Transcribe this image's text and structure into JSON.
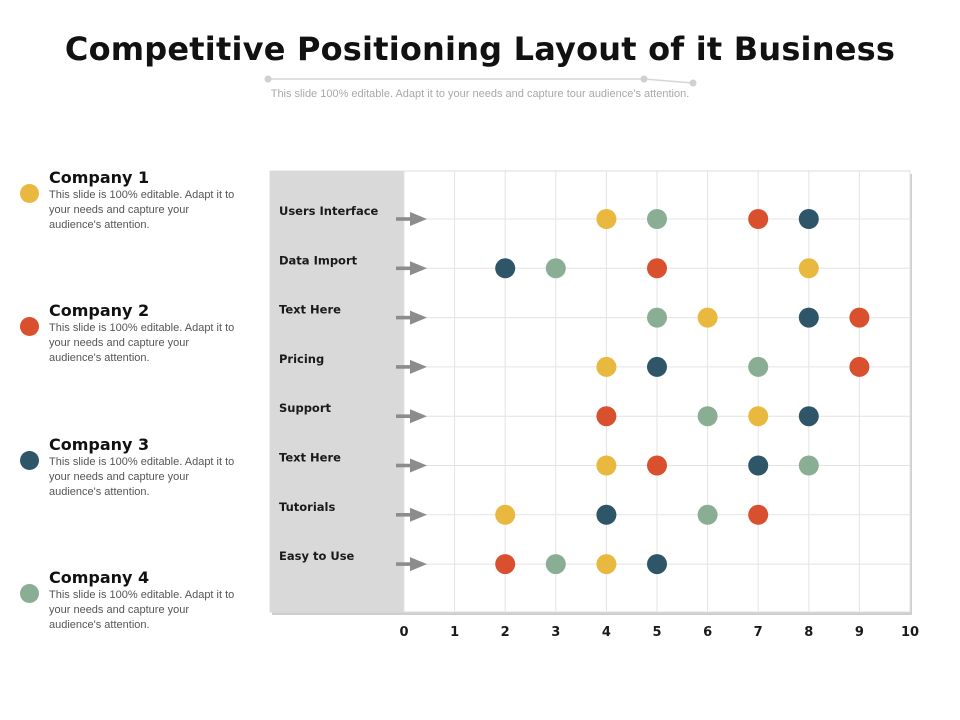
{
  "header": {
    "title": "Competitive Positioning Layout of it Business",
    "subtitle": "This slide 100% editable. Adapt it to your needs and capture tour audience's attention."
  },
  "legend": [
    {
      "name": "Company 1",
      "color": "#E9B83F",
      "desc": "This slide is 100% editable. Adapt it to your needs and capture your audience's attention."
    },
    {
      "name": "Company 2",
      "color": "#D9502E",
      "desc": "This slide is 100% editable. Adapt it to your needs and capture your audience's attention."
    },
    {
      "name": "Company 3",
      "color": "#2E5568",
      "desc": "This slide is 100% editable. Adapt it to your needs and capture your audience's attention."
    },
    {
      "name": "Company 4",
      "color": "#8AAE94",
      "desc": "This slide is 100% editable. Adapt it to your needs and capture your audience's attention."
    }
  ],
  "chart_data": {
    "type": "scatter",
    "title": "",
    "xlabel": "",
    "ylabel": "",
    "xlim": [
      0,
      10
    ],
    "x_ticks": [
      0,
      1,
      2,
      3,
      4,
      5,
      6,
      7,
      8,
      9,
      10
    ],
    "categories": [
      "Users Interface",
      "Data Import",
      "Text Here",
      "Pricing",
      "Support",
      "Text Here",
      "Tutorials",
      "Easy to Use"
    ],
    "grid": true,
    "series": [
      {
        "name": "Company 1",
        "color": "#E9B83F",
        "values": [
          4,
          8,
          6,
          4,
          7,
          4,
          2,
          4
        ]
      },
      {
        "name": "Company 2",
        "color": "#D9502E",
        "values": [
          7,
          5,
          9,
          9,
          4,
          5,
          7,
          2
        ]
      },
      {
        "name": "Company 3",
        "color": "#2E5568",
        "values": [
          8,
          2,
          8,
          5,
          8,
          7,
          4,
          5
        ]
      },
      {
        "name": "Company 4",
        "color": "#8AAE94",
        "values": [
          5,
          3,
          5,
          7,
          6,
          8,
          6,
          3
        ]
      }
    ]
  }
}
